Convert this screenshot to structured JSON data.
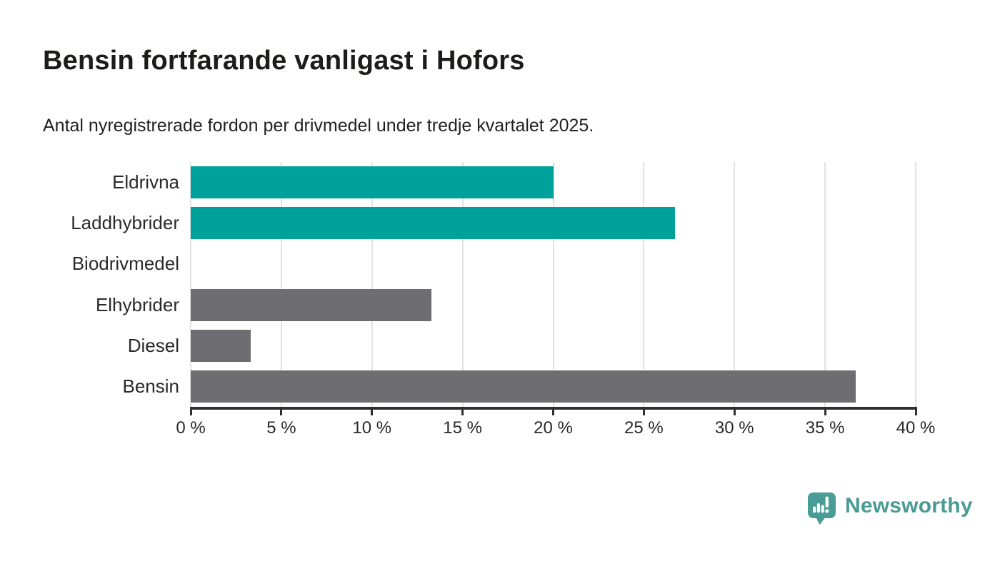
{
  "header": {
    "title": "Bensin fortfarande vanligast i Hofors",
    "subtitle": "Antal nyregistrerade fordon per drivmedel under tredje kvartalet 2025."
  },
  "chart_data": {
    "type": "bar",
    "orientation": "horizontal",
    "categories": [
      "Eldrivna",
      "Laddhybrider",
      "Biodrivmedel",
      "Elhybrider",
      "Diesel",
      "Bensin"
    ],
    "values": [
      20.0,
      26.7,
      0,
      13.3,
      3.3,
      36.7
    ],
    "bar_colors": [
      "#00a19a",
      "#00a19a",
      "#6e6d72",
      "#6e6d72",
      "#6e6d72",
      "#6e6d72"
    ],
    "unit": "%",
    "xlabel": "",
    "ylabel": "",
    "xlim": [
      0,
      40
    ],
    "x_ticks": [
      0,
      5,
      10,
      15,
      20,
      25,
      30,
      35,
      40
    ],
    "x_tick_labels": [
      "0 %",
      "5 %",
      "10 %",
      "15 %",
      "20 %",
      "25 %",
      "30 %",
      "35 %",
      "40 %"
    ],
    "grid": true,
    "legend": "none",
    "value_labels": "none"
  },
  "branding": {
    "logo_text": "Newsworthy",
    "logo_icon": "newsworthy-speech-bubble-barchart-icon",
    "logo_color": "#4a9a94",
    "icon_fill": "#4a9c96"
  },
  "colors": {
    "accent_teal": "#00a19a",
    "neutral_gray": "#6e6d72",
    "axis": "#2f2e33",
    "gridline": "#e2e2e2",
    "text": "#1d1c1a",
    "background": "#ffffff"
  }
}
